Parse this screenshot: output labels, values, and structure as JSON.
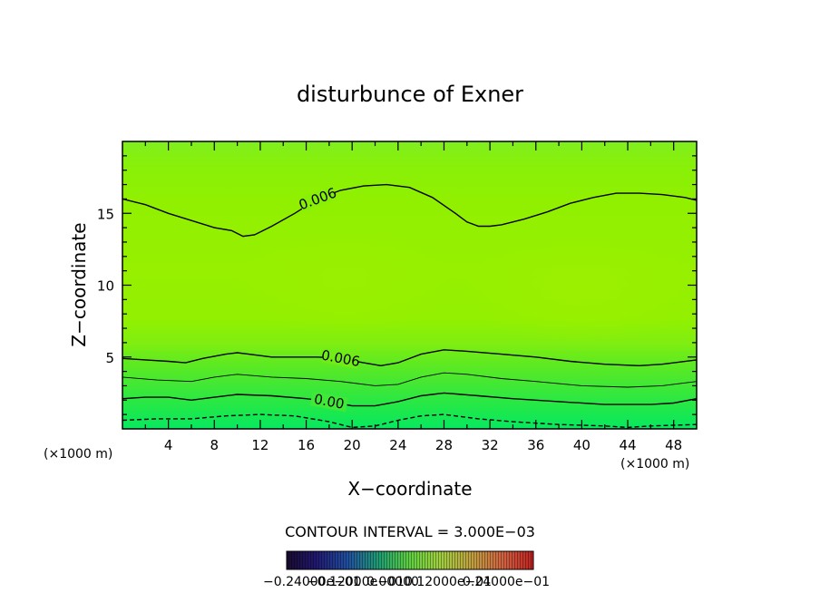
{
  "chart_data": {
    "type": "contour",
    "title": "disturbunce of Exner",
    "xlabel": "X−coordinate",
    "ylabel": "Z−coordinate",
    "x_unit": "(×1000 m)",
    "y_unit": "(×1000 m)",
    "xlim": [
      0,
      50
    ],
    "ylim": [
      0,
      20
    ],
    "x_ticks": [
      4,
      8,
      12,
      16,
      20,
      24,
      28,
      32,
      36,
      40,
      44,
      48
    ],
    "y_ticks": [
      5,
      10,
      15
    ],
    "contour_interval_text": "CONTOUR INTERVAL = 3.000E−03",
    "contours": [
      {
        "label": "0.006",
        "style": "solid",
        "points": [
          [
            0,
            16.0
          ],
          [
            2,
            15.6
          ],
          [
            4,
            15.0
          ],
          [
            6,
            14.5
          ],
          [
            8,
            14.0
          ],
          [
            9.5,
            13.8
          ],
          [
            10.5,
            13.4
          ],
          [
            11.5,
            13.5
          ],
          [
            13,
            14.1
          ],
          [
            15,
            15.0
          ],
          [
            17,
            16.0
          ],
          [
            19,
            16.6
          ],
          [
            21,
            16.9
          ],
          [
            23,
            17.0
          ],
          [
            25,
            16.8
          ],
          [
            27,
            16.1
          ],
          [
            29,
            15.0
          ],
          [
            30,
            14.4
          ],
          [
            31,
            14.1
          ],
          [
            32,
            14.1
          ],
          [
            33,
            14.2
          ],
          [
            35,
            14.6
          ],
          [
            37,
            15.1
          ],
          [
            39,
            15.7
          ],
          [
            41,
            16.1
          ],
          [
            43,
            16.4
          ],
          [
            45,
            16.4
          ],
          [
            47,
            16.3
          ],
          [
            49,
            16.1
          ],
          [
            50,
            15.9
          ]
        ]
      },
      {
        "label": "0.006",
        "style": "solid",
        "points": [
          [
            0,
            4.9
          ],
          [
            2,
            4.8
          ],
          [
            4,
            4.7
          ],
          [
            5.5,
            4.6
          ],
          [
            7,
            4.9
          ],
          [
            9,
            5.2
          ],
          [
            10,
            5.3
          ],
          [
            11,
            5.2
          ],
          [
            13,
            5.0
          ],
          [
            15,
            5.0
          ],
          [
            17,
            5.0
          ],
          [
            19,
            4.9
          ],
          [
            21,
            4.6
          ],
          [
            22.5,
            4.4
          ],
          [
            24,
            4.6
          ],
          [
            26,
            5.2
          ],
          [
            28,
            5.5
          ],
          [
            30,
            5.4
          ],
          [
            33,
            5.2
          ],
          [
            36,
            5.0
          ],
          [
            39,
            4.7
          ],
          [
            42,
            4.5
          ],
          [
            45,
            4.4
          ],
          [
            47,
            4.5
          ],
          [
            50,
            4.8
          ]
        ]
      },
      {
        "label": "",
        "style": "thin",
        "points": [
          [
            0,
            3.6
          ],
          [
            3,
            3.4
          ],
          [
            6,
            3.3
          ],
          [
            8,
            3.6
          ],
          [
            10,
            3.8
          ],
          [
            13,
            3.6
          ],
          [
            16,
            3.5
          ],
          [
            19,
            3.3
          ],
          [
            22,
            3.0
          ],
          [
            24,
            3.1
          ],
          [
            26,
            3.6
          ],
          [
            28,
            3.9
          ],
          [
            30,
            3.8
          ],
          [
            33,
            3.5
          ],
          [
            36,
            3.3
          ],
          [
            40,
            3.0
          ],
          [
            44,
            2.9
          ],
          [
            47,
            3.0
          ],
          [
            50,
            3.3
          ]
        ]
      },
      {
        "label": "0.00",
        "style": "solid",
        "points": [
          [
            0,
            2.1
          ],
          [
            2,
            2.2
          ],
          [
            4,
            2.2
          ],
          [
            6,
            2.0
          ],
          [
            8,
            2.2
          ],
          [
            10,
            2.4
          ],
          [
            13,
            2.3
          ],
          [
            16,
            2.1
          ],
          [
            18,
            1.9
          ],
          [
            20,
            1.6
          ],
          [
            22,
            1.6
          ],
          [
            24,
            1.9
          ],
          [
            26,
            2.3
          ],
          [
            28,
            2.5
          ],
          [
            31,
            2.3
          ],
          [
            34,
            2.1
          ],
          [
            38,
            1.9
          ],
          [
            42,
            1.7
          ],
          [
            46,
            1.7
          ],
          [
            48,
            1.8
          ],
          [
            50,
            2.1
          ]
        ]
      },
      {
        "label": "",
        "style": "dashed",
        "points": [
          [
            0,
            0.6
          ],
          [
            3,
            0.7
          ],
          [
            6,
            0.7
          ],
          [
            9,
            0.9
          ],
          [
            12,
            1.0
          ],
          [
            15,
            0.9
          ],
          [
            18,
            0.5
          ],
          [
            20,
            0.1
          ],
          [
            22,
            0.2
          ],
          [
            24,
            0.6
          ],
          [
            26,
            0.9
          ],
          [
            28,
            1.0
          ],
          [
            31,
            0.7
          ],
          [
            34,
            0.5
          ],
          [
            38,
            0.3
          ],
          [
            42,
            0.2
          ],
          [
            44,
            0.1
          ],
          [
            46,
            0.2
          ],
          [
            50,
            0.3
          ]
        ]
      }
    ],
    "colorbar": {
      "min_label": "−0.24000e−01",
      "mid_label_1": "−0.12000e−01",
      "mid_label_2": "0.00000",
      "mid_label_3": "0.12000e−01",
      "max_label": "0.24000e−01"
    }
  }
}
